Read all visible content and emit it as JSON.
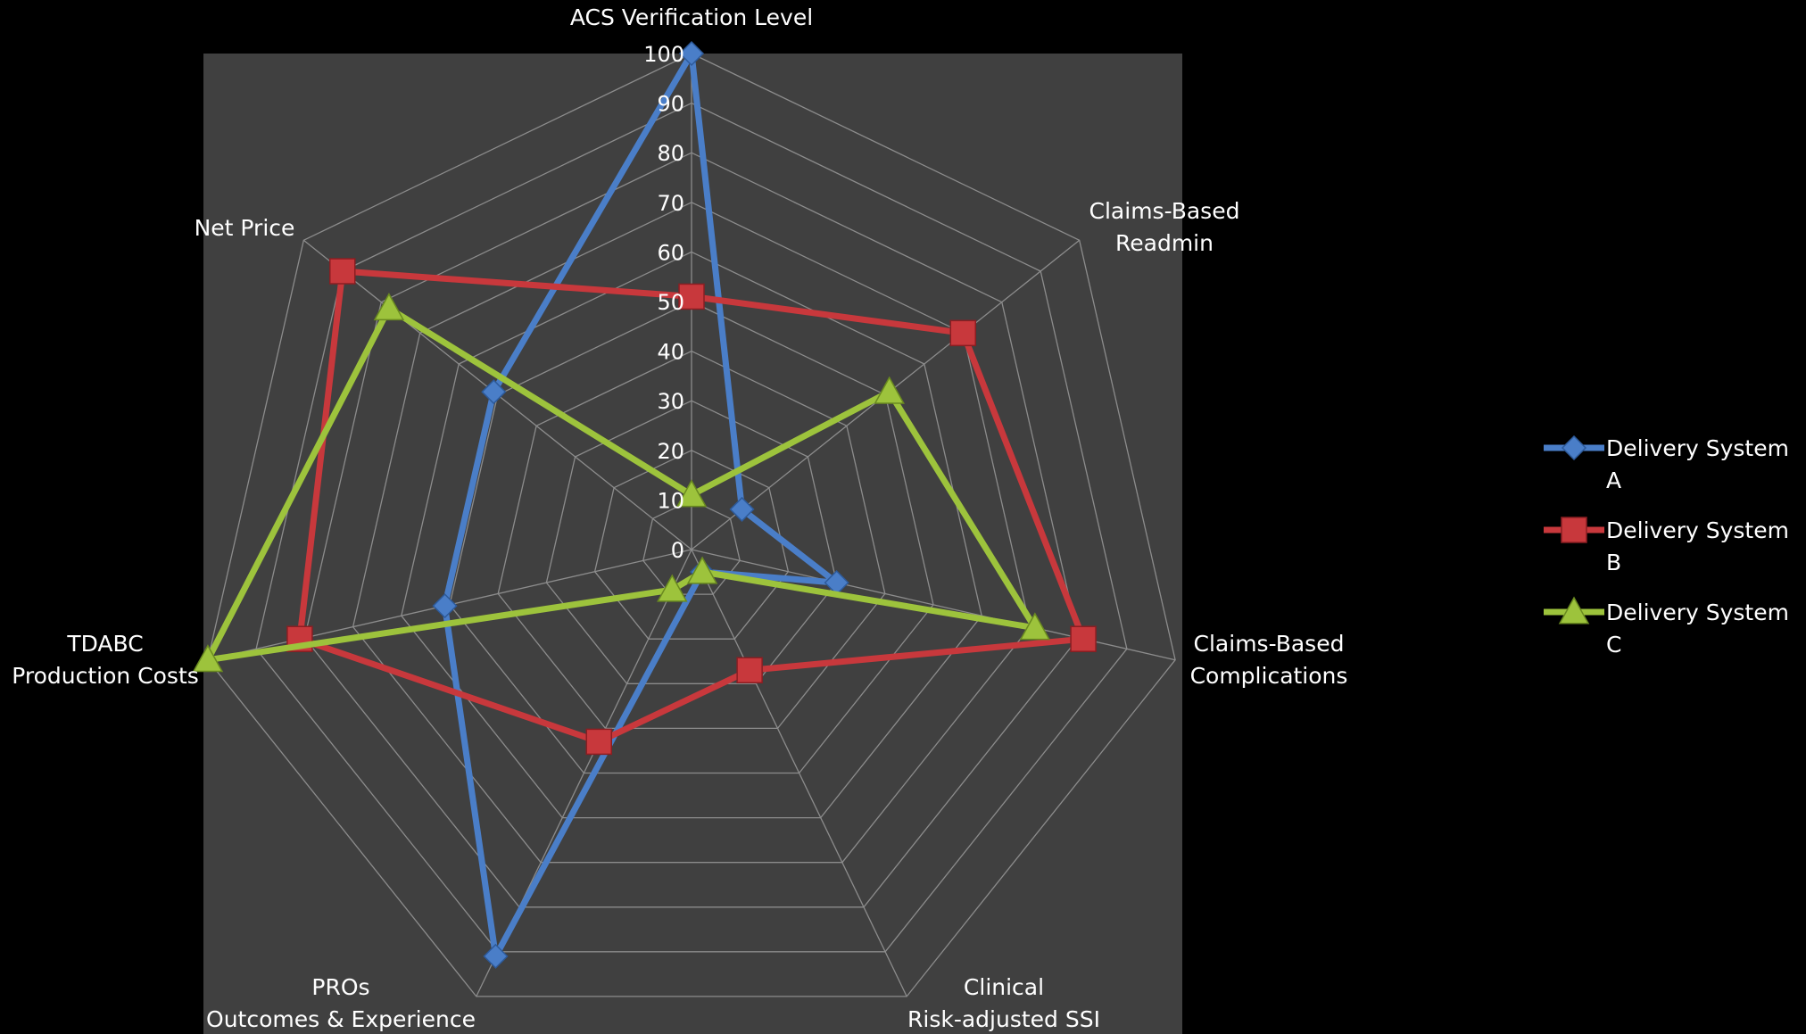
{
  "chart_data": {
    "type": "radar",
    "title": "",
    "axes": [
      "ACS Verification Level",
      "Claims-Based Readmin",
      "Claims-Based Complications",
      "Clinical Risk-adjusted SSI",
      "PROs Outcomes & Experience",
      "TDABC Production Costs",
      "Net Price"
    ],
    "axis_label_lines": [
      [
        "ACS Verification Level"
      ],
      [
        "Claims-Based",
        "Readmin"
      ],
      [
        "Claims-Based",
        "Complications"
      ],
      [
        "Clinical",
        "Risk-adjusted SSI"
      ],
      [
        "PROs",
        "Outcomes & Experience"
      ],
      [
        "TDABC",
        "Production Costs"
      ],
      [
        "Net Price"
      ]
    ],
    "range": [
      0,
      100
    ],
    "ticks": [
      0,
      10,
      20,
      30,
      40,
      50,
      60,
      70,
      80,
      90,
      100
    ],
    "tick_labels": [
      "0",
      "10",
      "20",
      "30",
      "40",
      "50",
      "60",
      "70",
      "80",
      "90",
      "100"
    ],
    "grid": true,
    "legend_position": "right",
    "series": [
      {
        "name": "Delivery System A",
        "legend_lines": [
          "Delivery System",
          "A"
        ],
        "color": "#4a7ec8",
        "marker": "diamond",
        "values": [
          100,
          13,
          30,
          5,
          91,
          51,
          51
        ]
      },
      {
        "name": "Delivery System B",
        "legend_lines": [
          "Delivery System",
          "B"
        ],
        "color": "#c8383c",
        "marker": "square",
        "values": [
          51,
          70,
          81,
          27,
          43,
          81,
          90
        ]
      },
      {
        "name": "Delivery System C",
        "legend_lines": [
          "Delivery System",
          "C"
        ],
        "color": "#9dc33c",
        "marker": "triangle",
        "values": [
          11,
          51,
          71,
          5,
          9,
          100,
          78
        ]
      }
    ]
  }
}
